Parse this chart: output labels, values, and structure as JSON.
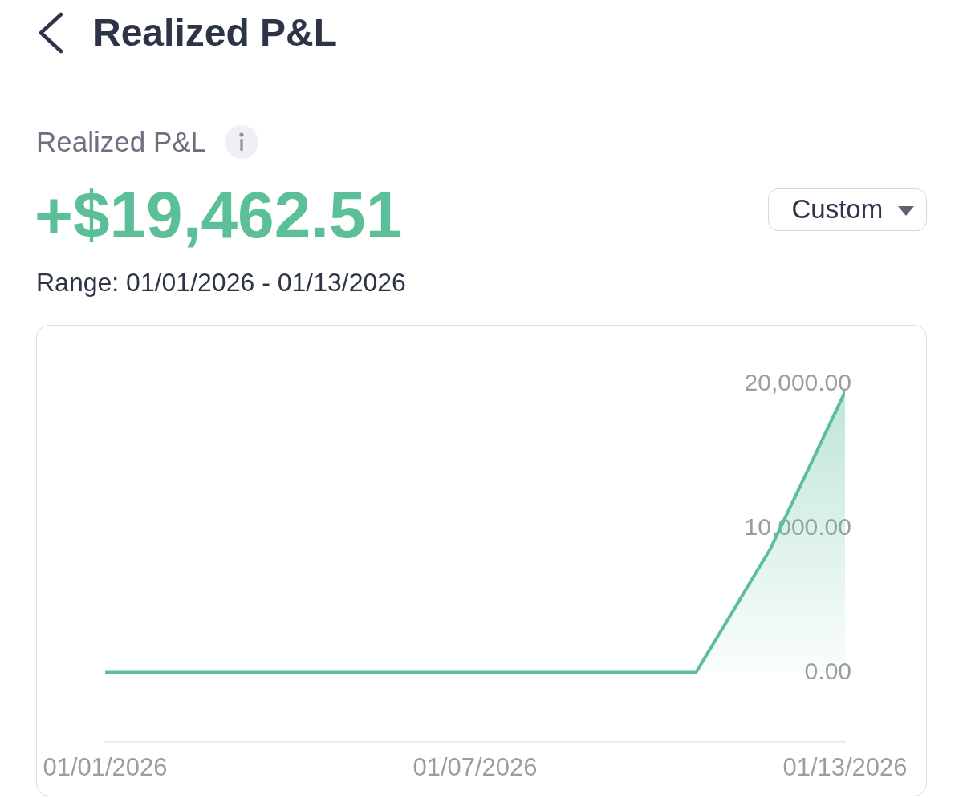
{
  "chart_data": {
    "type": "area",
    "title": "Realized P&L",
    "subtitle": "Realized P&L",
    "annotations": [
      "+$19,462.51",
      "Range: 01/01/2026 - 01/13/2026",
      "Custom"
    ],
    "x": [
      "2026-01-01",
      "2026-01-10T14:00",
      "2026-01-11T19:00",
      "2026-01-13"
    ],
    "xlim": [
      "2026-01-01",
      "2026-01-13"
    ],
    "xticks": [
      {
        "value": "2026-01-01",
        "label": "01/01/2026"
      },
      {
        "value": "2026-01-07",
        "label": "01/07/2026"
      },
      {
        "value": "2026-01-13",
        "label": "01/13/2026"
      }
    ],
    "series": [
      {
        "color": "#5bbf98",
        "values": [
          0,
          0,
          8600,
          19460
        ]
      }
    ],
    "ylim": [
      -4800,
      20000
    ],
    "yticks": [
      {
        "value": 0,
        "label": "0.00"
      },
      {
        "value": 10000,
        "label": "10,000.00"
      },
      {
        "value": 20000,
        "label": "20,000.00"
      }
    ],
    "grid": false,
    "marker": "none",
    "line_style": "solid"
  }
}
